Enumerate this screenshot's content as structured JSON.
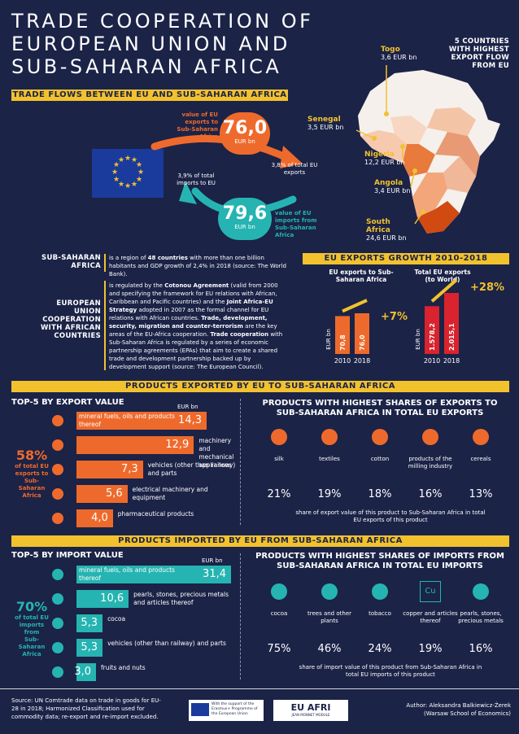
{
  "title": [
    "TRADE COOPERATION OF",
    "EUROPEAN UNION AND",
    "SUB-SAHARAN AFRICA"
  ],
  "flows_header": "TRADE FLOWS BETWEEN EU AND SUB-SAHARAN AFRICA",
  "flows": {
    "exports_label": "value of EU exports to Sub-Saharan Africa",
    "exports_value": "76,0",
    "exports_unit": "EUR bn",
    "exports_share": "3,8% of total EU exports",
    "imports_share": "3,9% of total imports to EU",
    "imports_value": "79,6",
    "imports_unit": "EUR bn",
    "imports_label": "value of EU imports from Sub-Saharan Africa"
  },
  "map": {
    "title": "5 COUNTRIES WITH HIGHEST EXPORT FLOW FROM EU",
    "countries": [
      {
        "name": "Togo",
        "value": "3,6 EUR bn"
      },
      {
        "name": "Senegal",
        "value": "3,5 EUR bn"
      },
      {
        "name": "Nigeria",
        "value": "12,2 EUR bn"
      },
      {
        "name": "Angola",
        "value": "3,4 EUR bn"
      },
      {
        "name": "South Africa",
        "value": "24,6 EUR bn"
      }
    ]
  },
  "ssa": {
    "heading": [
      "SUB-SAHARAN",
      "AFRICA"
    ],
    "text_a": "is a region of ",
    "text_b": "48 countries",
    "text_c": " with more than one billion habitants and GDP growth of 2,4% in 2018 (source: The World Bank)."
  },
  "coop": {
    "heading": [
      "EUROPEAN",
      "UNION",
      "COOPERATION",
      "WITH AFRICAN",
      "COUNTRIES"
    ],
    "p1": "is regulated by the ",
    "p1b": "Cotonou Agreement",
    "p2": " (valid from 2000 and specifying the framework for EU relations with African, Caribbean and Pacific countries) and the ",
    "p2b": "Joint Africa-EU Strategy",
    "p3": " adopted in 2007 as the formal channel for EU relations with African countries. ",
    "p3b": "Trade, development, security, migration and counter-terrorism",
    "p4": " are the key areas of the EU-Africa cooperation. ",
    "p4b": "Trade cooperation",
    "p5": " with Sub-Saharan Africa is regulated by a series of economic partnership agreements (EPAs) that aim to create a shared trade and development partnership backed up by development support (source: The European Council)."
  },
  "growth": {
    "header": "EU EXPORTS GROWTH 2010-2018",
    "left_title": "EU exports to Sub-Saharan Africa",
    "right_title": "Total EU exports (to World)",
    "axis_unit": "EUR bn",
    "years": [
      "2010",
      "2018"
    ],
    "left_values": [
      "70,8",
      "76,0"
    ],
    "left_growth": "+7%",
    "right_values": [
      "1.578,2",
      "2.015,1"
    ],
    "right_growth": "+28%"
  },
  "chart_data": [
    {
      "type": "bar",
      "title": "EU exports to Sub-Saharan Africa",
      "ylabel": "EUR bn",
      "categories": [
        "2010",
        "2018"
      ],
      "values": [
        70.8,
        76.0
      ]
    },
    {
      "type": "bar",
      "title": "Total EU exports (to World)",
      "ylabel": "EUR bn",
      "categories": [
        "2010",
        "2018"
      ],
      "values": [
        1578.2,
        2015.1
      ]
    },
    {
      "type": "bar",
      "title": "TOP-5 BY EXPORT VALUE",
      "ylabel": "EUR bn",
      "categories": [
        "mineral fuels, oils and products thereof",
        "machinery and mechanical appliances",
        "vehicles (other than railway) and parts",
        "electrical machinery and equipment",
        "pharmaceutical products"
      ],
      "values": [
        14.3,
        12.9,
        7.3,
        5.6,
        4.0
      ]
    },
    {
      "type": "bar",
      "title": "TOP-5 BY IMPORT VALUE",
      "ylabel": "EUR bn",
      "categories": [
        "mineral fuels, oils and products thereof",
        "pearls, stones, precious metals and articles thereof",
        "cocoa",
        "vehicles (other than railway) and parts",
        "fruits and nuts"
      ],
      "values": [
        31.4,
        10.6,
        5.3,
        5.3,
        3.0
      ]
    }
  ],
  "exported_header": "PRODUCTS EXPORTED BY EU TO SUB-SAHARAN AFRICA",
  "exports_top5": {
    "title": "TOP-5 BY EXPORT VALUE",
    "unit": "EUR bn",
    "share": "58%",
    "share_label": [
      "of total EU",
      "exports to",
      "Sub-Saharan",
      "Africa"
    ],
    "items": [
      {
        "label": "mineral fuels, oils and products thereof",
        "value": "14,3",
        "num": 14.3
      },
      {
        "label": "machinery and mechanical appliances",
        "value": "12,9",
        "num": 12.9
      },
      {
        "label": "vehicles (other than railway) and parts",
        "value": "7,3",
        "num": 7.3
      },
      {
        "label": "electrical machinery and equipment",
        "value": "5,6",
        "num": 5.6
      },
      {
        "label": "pharmaceutical products",
        "value": "4,0",
        "num": 4.0
      }
    ]
  },
  "exports_shares": {
    "title": "PRODUCTS WITH HIGHEST SHARES OF EXPORTS TO SUB-SAHARAN AFRICA IN TOTAL EU EXPORTS",
    "products": [
      {
        "label": "silk",
        "pct": "21%"
      },
      {
        "label": "textiles",
        "pct": "19%"
      },
      {
        "label": "cotton",
        "pct": "18%"
      },
      {
        "label": "products of the milling industry",
        "pct": "16%"
      },
      {
        "label": "cereals",
        "pct": "13%"
      }
    ],
    "note": "share of export value of this product to Sub-Saharan Africa in total EU exports of this product"
  },
  "imported_header": "PRODUCTS IMPORTED BY EU FROM SUB-SAHARAN AFRICA",
  "imports_top5": {
    "title": "TOP-5 BY IMPORT VALUE",
    "unit": "EUR bn",
    "share": "70%",
    "share_label": [
      "of total EU",
      "imports from",
      "Sub-Saharan",
      "Africa"
    ],
    "items": [
      {
        "label": "mineral fuels, oils and products thereof",
        "value": "31,4",
        "num": 31.4
      },
      {
        "label": "pearls, stones, precious metals and articles thereof",
        "value": "10,6",
        "num": 10.6
      },
      {
        "label": "cocoa",
        "value": "5,3",
        "num": 5.3
      },
      {
        "label": "vehicles (other than railway) and parts",
        "value": "5,3",
        "num": 5.3
      },
      {
        "label": "fruits and nuts",
        "value": "3,0",
        "num": 3.0
      }
    ]
  },
  "imports_shares": {
    "title": "PRODUCTS WITH HIGHEST SHARES OF IMPORTS FROM SUB-SAHARAN AFRICA IN TOTAL EU IMPORTS",
    "products": [
      {
        "label": "cocoa",
        "pct": "75%"
      },
      {
        "label": "trees and other plants",
        "pct": "46%"
      },
      {
        "label": "tobacco",
        "pct": "24%"
      },
      {
        "label": "copper and articles thereof",
        "pct": "19%"
      },
      {
        "label": "pearls, stones, precious metals",
        "pct": "16%"
      }
    ],
    "cu_symbol": "Cu",
    "note": "share of import value of this product from Sub-Saharan Africa in total EU imports of this product"
  },
  "footer": {
    "source": "Source: UN Comtrade data on trade in goods for EU-28 in 2018; Harmonized Classification used for commodity data; re-export and re-import excluded.",
    "erasmus": "With the support of the Erasmus+ Programme of the European Union",
    "euafri_logo": "EU AFRI",
    "euafri_sub": "JEAN MONNET MODULE",
    "author": "Author: Aleksandra Balkiewicz-Żerek (Warsaw School of Economics)"
  },
  "colors": {
    "background": "#1b2347",
    "accent_orange": "#ee6a2c",
    "accent_teal": "#25b4b1",
    "accent_yellow": "#f2c12e",
    "red": "#d9232e"
  }
}
